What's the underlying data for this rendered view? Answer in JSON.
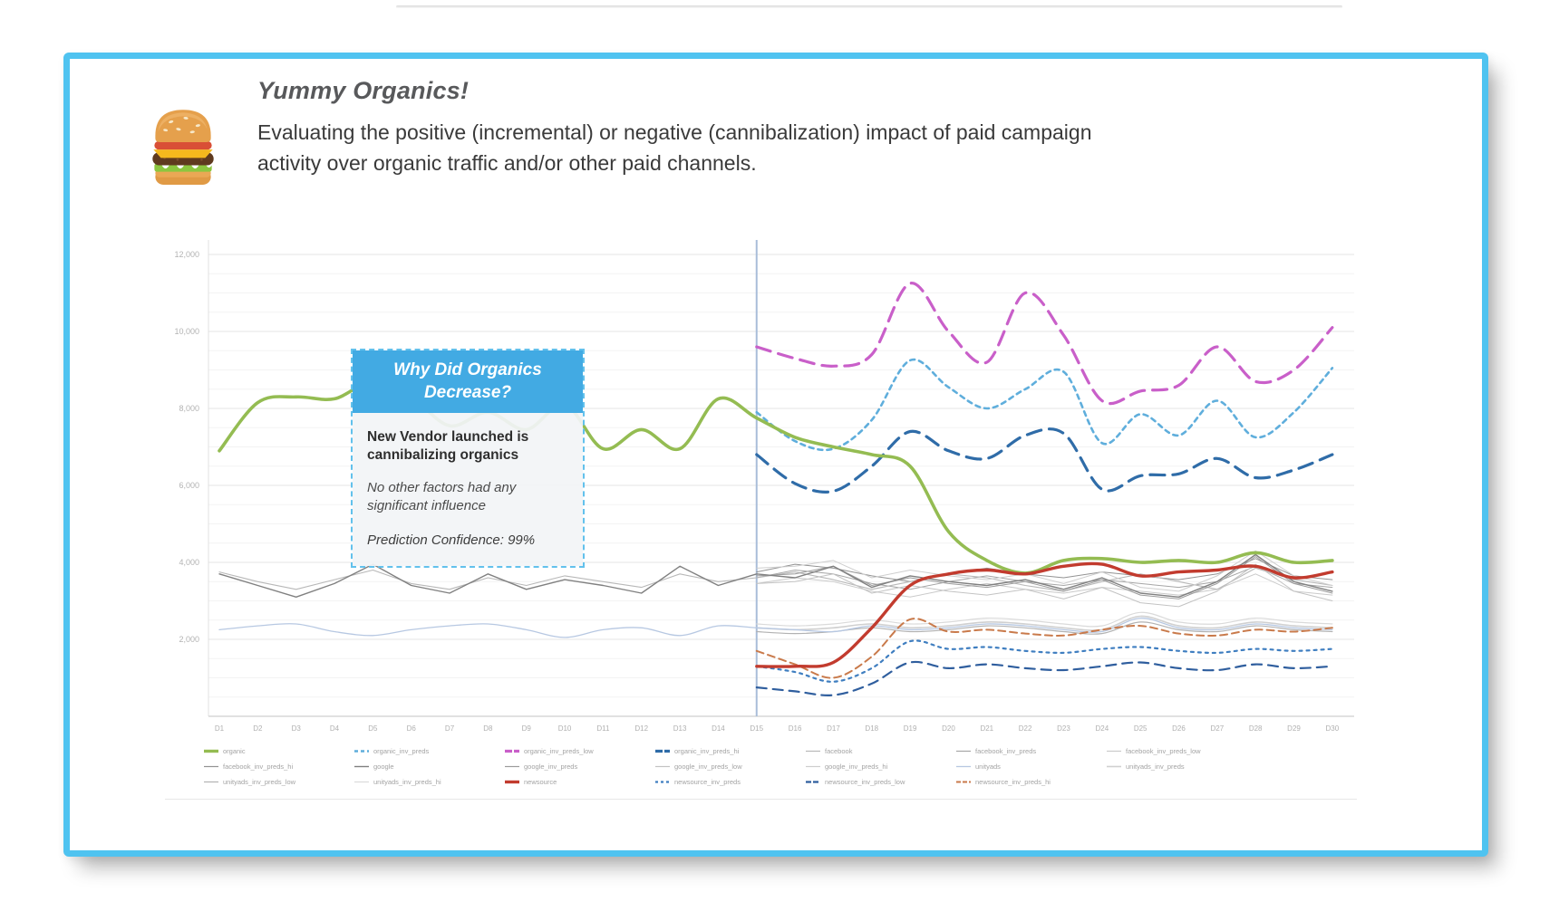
{
  "header": {
    "emoji": "burger-emoji",
    "title": "Yummy Organics!",
    "description": "Evaluating the positive (incremental) or negative (cannibalization) impact of paid campaign activity over organic traffic and/or other paid channels."
  },
  "callout": {
    "header": "Why Did Organics Decrease?",
    "line_bold": "New Vendor launched is cannibalizing organics",
    "line_italic1": "No other factors had any significant influence",
    "line_italic2": "Prediction Confidence: 99%"
  },
  "colors": {
    "card_border": "#4FC3F0",
    "callout_header_bg": "#42AAE3",
    "callout_border": "#62C1EC",
    "event_line": "#a9bdd9"
  },
  "chart_data": {
    "type": "line",
    "title": "",
    "xlabel": "",
    "ylabel": "",
    "x_labels": [
      "D1",
      "D2",
      "D3",
      "D4",
      "D5",
      "D6",
      "D7",
      "D8",
      "D9",
      "D10",
      "D11",
      "D12",
      "D13",
      "D14",
      "D15",
      "D16",
      "D17",
      "D18",
      "D19",
      "D20",
      "D21",
      "D22",
      "D23",
      "D24",
      "D25",
      "D26",
      "D27",
      "D28",
      "D29",
      "D30"
    ],
    "y_ticks": [
      2000,
      4000,
      6000,
      8000,
      10000,
      12000
    ],
    "y_tick_labels": [
      "2,000",
      "4,000",
      "6,000",
      "8,000",
      "10,000",
      "12,000"
    ],
    "ylim": [
      0,
      12700
    ],
    "minor_grid_step": 500,
    "grid": "on",
    "legend_position": "bottom",
    "event_line_day": 15,
    "legend_order": [
      "organic",
      "organic_inv_preds",
      "organic_inv_preds_low",
      "organic_inv_preds_hi",
      "facebook",
      "facebook_inv_preds",
      "facebook_inv_preds_low",
      "facebook_inv_preds_hi",
      "google",
      "google_inv_preds",
      "google_inv_preds_low",
      "google_inv_preds_hi",
      "unityads",
      "unityads_inv_preds",
      "unityads_inv_preds_low",
      "unityads_inv_preds_hi",
      "newsource",
      "newsource_inv_preds",
      "newsource_inv_preds_low",
      "newsource_inv_preds_hi"
    ],
    "draw_order": [
      "unityads_inv_preds_hi",
      "unityads_inv_preds_low",
      "unityads_inv_preds",
      "unityads",
      "facebook_inv_preds_low",
      "facebook_inv_preds_hi",
      "facebook_inv_preds",
      "facebook",
      "google_inv_preds_low",
      "google_inv_preds_hi",
      "google_inv_preds",
      "google",
      "newsource_inv_preds_hi",
      "newsource_inv_preds",
      "newsource_inv_preds_low",
      "organic_inv_preds_hi",
      "organic_inv_preds",
      "organic_inv_preds_low",
      "organic",
      "newsource"
    ],
    "series": [
      {
        "name": "organic",
        "color": "#94BC52",
        "width": 3.6,
        "dash": null,
        "legend_dash": null,
        "smooth": true,
        "start_day": 1,
        "values": [
          6900,
          8150,
          8300,
          8250,
          8700,
          8300,
          7550,
          7900,
          7450,
          8100,
          6950,
          7450,
          6950,
          8250,
          7750,
          7250,
          7000,
          6800,
          6500,
          4800,
          4050,
          3720,
          4050,
          4100,
          4000,
          4050,
          4000,
          4250,
          4000,
          4050
        ]
      },
      {
        "name": "organic_inv_preds",
        "color": "#5FAEDC",
        "width": 2.6,
        "dash": "5,5",
        "legend_dash": "4,3",
        "smooth": true,
        "start_day": 15,
        "values": [
          7900,
          7150,
          6950,
          7700,
          9250,
          8550,
          8000,
          8500,
          8950,
          7100,
          7850,
          7300,
          8200,
          7250,
          7900,
          9050
        ]
      },
      {
        "name": "organic_inv_preds_low",
        "color": "#C95FC9",
        "width": 3.2,
        "dash": "16,9",
        "legend_dash": "8,2",
        "smooth": true,
        "start_day": 15,
        "values": [
          9600,
          9300,
          9100,
          9400,
          11250,
          10000,
          9200,
          11000,
          9900,
          8200,
          8450,
          8600,
          9600,
          8700,
          9000,
          10100
        ]
      },
      {
        "name": "organic_inv_preds_hi",
        "color": "#2F6CA8",
        "width": 3.2,
        "dash": "16,9",
        "legend_dash": "8,2",
        "smooth": true,
        "start_day": 15,
        "values": [
          6800,
          6050,
          5850,
          6500,
          7400,
          6900,
          6700,
          7300,
          7350,
          5900,
          6250,
          6300,
          6700,
          6200,
          6400,
          6800
        ]
      },
      {
        "name": "facebook",
        "color": "#b8b8b8",
        "width": 1.1,
        "dash": null,
        "legend_dash": null,
        "smooth": false,
        "start_day": 1,
        "values": [
          3750,
          3500,
          3300,
          3550,
          3800,
          3450,
          3300,
          3600,
          3400,
          3650,
          3500,
          3350,
          3700,
          3500,
          3600,
          3750,
          3550,
          3300,
          3500,
          3700,
          3600,
          3400,
          3250,
          3500,
          3700,
          3500,
          3300,
          3850,
          3550,
          3400
        ]
      },
      {
        "name": "facebook_inv_preds",
        "color": "#a6a6a6",
        "width": 1,
        "dash": null,
        "legend_dash": null,
        "smooth": false,
        "start_day": 15,
        "values": [
          3600,
          3800,
          3700,
          3450,
          3300,
          3500,
          3650,
          3500,
          3400,
          3550,
          3450,
          3350,
          3500,
          3900,
          3450,
          3350
        ]
      },
      {
        "name": "facebook_inv_preds_low",
        "color": "#cacaca",
        "width": 1,
        "dash": null,
        "legend_dash": null,
        "smooth": false,
        "start_day": 15,
        "values": [
          3450,
          3600,
          3500,
          3250,
          3100,
          3300,
          3450,
          3300,
          3200,
          3350,
          3250,
          3150,
          3300,
          3700,
          3250,
          3150
        ]
      },
      {
        "name": "facebook_inv_preds_hi",
        "color": "#939393",
        "width": 1,
        "dash": null,
        "legend_dash": null,
        "smooth": false,
        "start_day": 15,
        "values": [
          3750,
          3950,
          3850,
          3650,
          3500,
          3700,
          3850,
          3700,
          3600,
          3750,
          3650,
          3550,
          3700,
          4100,
          3650,
          3550
        ]
      },
      {
        "name": "google",
        "color": "#808080",
        "width": 1.4,
        "dash": null,
        "legend_dash": null,
        "smooth": false,
        "start_day": 1,
        "values": [
          3700,
          3400,
          3100,
          3450,
          3950,
          3400,
          3200,
          3700,
          3300,
          3550,
          3400,
          3200,
          3900,
          3400,
          3700,
          3600,
          3900,
          3350,
          3650,
          3500,
          3400,
          3550,
          3300,
          3600,
          3200,
          3100,
          3500,
          4200,
          3500,
          3250
        ]
      },
      {
        "name": "google_inv_preds",
        "color": "#9b9b9b",
        "width": 1,
        "dash": null,
        "legend_dash": null,
        "smooth": false,
        "start_day": 15,
        "values": [
          3650,
          3700,
          3900,
          3400,
          3600,
          3450,
          3350,
          3500,
          3250,
          3550,
          3150,
          3050,
          3450,
          4150,
          3450,
          3200
        ]
      },
      {
        "name": "google_inv_preds_low",
        "color": "#c3c3c3",
        "width": 1,
        "dash": null,
        "legend_dash": null,
        "smooth": false,
        "start_day": 15,
        "values": [
          3450,
          3500,
          3700,
          3200,
          3400,
          3250,
          3150,
          3300,
          3050,
          3350,
          2950,
          2850,
          3250,
          3950,
          3250,
          3000
        ]
      },
      {
        "name": "google_inv_preds_hi",
        "color": "#cecece",
        "width": 1,
        "dash": null,
        "legend_dash": null,
        "smooth": false,
        "start_day": 15,
        "values": [
          3850,
          3900,
          4050,
          3600,
          3800,
          3650,
          3550,
          3700,
          3450,
          3750,
          3350,
          3250,
          3650,
          4300,
          3650,
          3400
        ]
      },
      {
        "name": "unityads",
        "color": "#b7c8e2",
        "width": 1.3,
        "dash": null,
        "legend_dash": null,
        "smooth": true,
        "start_day": 1,
        "values": [
          2250,
          2350,
          2400,
          2200,
          2100,
          2250,
          2350,
          2400,
          2250,
          2050,
          2250,
          2300,
          2100,
          2350,
          2300,
          2250,
          2200,
          2350,
          2250,
          2300,
          2400,
          2350,
          2250,
          2200,
          2550,
          2300,
          2250,
          2400,
          2300,
          2250
        ]
      },
      {
        "name": "unityads_inv_preds",
        "color": "#d0d0d0",
        "width": 1.6,
        "dash": null,
        "legend_dash": null,
        "smooth": true,
        "start_day": 15,
        "values": [
          2300,
          2250,
          2300,
          2400,
          2300,
          2350,
          2450,
          2400,
          2300,
          2250,
          2600,
          2350,
          2300,
          2450,
          2350,
          2300
        ]
      },
      {
        "name": "unityads_inv_preds_low",
        "color": "#b2b2b2",
        "width": 1.2,
        "dash": null,
        "legend_dash": null,
        "smooth": true,
        "start_day": 15,
        "values": [
          2200,
          2150,
          2200,
          2300,
          2200,
          2250,
          2350,
          2300,
          2200,
          2150,
          2450,
          2250,
          2200,
          2350,
          2250,
          2200
        ]
      },
      {
        "name": "unityads_inv_preds_hi",
        "color": "#dadada",
        "width": 1.2,
        "dash": null,
        "legend_dash": null,
        "smooth": true,
        "start_day": 15,
        "values": [
          2400,
          2350,
          2400,
          2500,
          2400,
          2450,
          2550,
          2500,
          2400,
          2350,
          2700,
          2450,
          2400,
          2550,
          2450,
          2400
        ]
      },
      {
        "name": "newsource",
        "color": "#C23B2E",
        "width": 3.4,
        "dash": null,
        "legend_dash": null,
        "smooth": true,
        "start_day": 15,
        "values": [
          1300,
          1300,
          1400,
          2300,
          3400,
          3700,
          3800,
          3700,
          3900,
          3950,
          3650,
          3750,
          3800,
          3900,
          3600,
          3750
        ]
      },
      {
        "name": "newsource_inv_preds",
        "color": "#3F7EC0",
        "width": 2.2,
        "dash": "3,5",
        "legend_dash": "3,3",
        "smooth": true,
        "start_day": 15,
        "values": [
          1300,
          1150,
          900,
          1250,
          1950,
          1750,
          1800,
          1700,
          1650,
          1750,
          1800,
          1700,
          1650,
          1750,
          1700,
          1750
        ]
      },
      {
        "name": "newsource_inv_preds_low",
        "color": "#2F5E9E",
        "width": 2.2,
        "dash": "11,7",
        "legend_dash": "6,2",
        "smooth": true,
        "start_day": 15,
        "values": [
          750,
          650,
          550,
          850,
          1400,
          1250,
          1350,
          1250,
          1200,
          1300,
          1400,
          1250,
          1200,
          1350,
          1250,
          1300
        ]
      },
      {
        "name": "newsource_inv_preds_hi",
        "color": "#C97A4B",
        "width": 2,
        "dash": "8,5",
        "legend_dash": "5,2",
        "smooth": true,
        "start_day": 15,
        "values": [
          1700,
          1350,
          1000,
          1550,
          2520,
          2200,
          2250,
          2150,
          2100,
          2250,
          2350,
          2150,
          2100,
          2250,
          2200,
          2300
        ]
      }
    ]
  }
}
